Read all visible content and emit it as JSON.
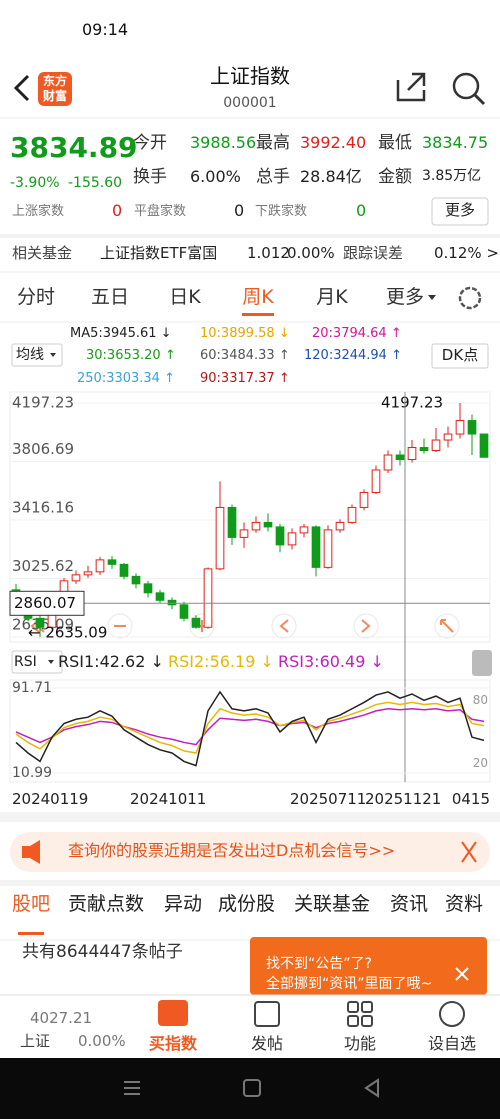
{
  "status": {
    "time": "09:14"
  },
  "header": {
    "logo": [
      "东方",
      "财富"
    ],
    "title": "上证指数",
    "code": "000001"
  },
  "quote": {
    "price": "3834.89",
    "change_pct": "-3.90%",
    "change": "-155.60",
    "fields": [
      {
        "label": "今开",
        "value": "3988.56"
      },
      {
        "label": "最高",
        "value": "3992.40"
      },
      {
        "label": "最低",
        "value": "3834.75"
      },
      {
        "label": "换手",
        "value": "6.00%"
      },
      {
        "label": "总手",
        "value": "28.84亿"
      },
      {
        "label": "金额",
        "value": "3.85万亿"
      }
    ],
    "counts": [
      {
        "label": "上涨家数",
        "value": "0"
      },
      {
        "label": "平盘家数",
        "value": "0"
      },
      {
        "label": "下跌家数",
        "value": "0"
      }
    ],
    "more": "更多"
  },
  "fund": {
    "label": "相关基金",
    "name": "上证指数ETF富国",
    "price": "1.012",
    "pct": "0.00%",
    "error_label": "跟踪误差",
    "error": "0.12% >"
  },
  "tabs": {
    "items": [
      "分时",
      "五日",
      "日K",
      "周K",
      "月K",
      "更多"
    ],
    "active": 3
  },
  "ma": {
    "button": "均线",
    "dk": "DK点",
    "legend": [
      {
        "text": "MA5:3945.61 ↓",
        "color": "#222222"
      },
      {
        "text": "10:3899.58 ↓",
        "color": "#e8a400"
      },
      {
        "text": "20:3794.64 ↑",
        "color": "#d3149a"
      },
      {
        "text": "30:3653.20 ↑",
        "color": "#1a9a1a"
      },
      {
        "text": "60:3484.33 ↑",
        "color": "#555555"
      },
      {
        "text": "120:3244.94 ↑",
        "color": "#1f4fb3"
      },
      {
        "text": "250:3303.34 ↑",
        "color": "#3aa0d8"
      },
      {
        "text": "90:3317.37 ↑",
        "color": "#b01818"
      }
    ]
  },
  "kline": {
    "ylim": [
      2635.09,
      4197.23
    ],
    "yticks": [
      4197.23,
      3806.69,
      3416.16,
      3025.62,
      2635.09
    ],
    "high_label": "4197.23",
    "low_label": "← 2635.09",
    "cursor_price": 2860.07,
    "candles": [
      [
        2950,
        2890,
        2990,
        2870
      ],
      [
        2890,
        2760,
        2900,
        2740
      ],
      [
        2760,
        2700,
        2780,
        2635
      ],
      [
        2700,
        2860,
        2880,
        2690
      ],
      [
        2860,
        3010,
        3030,
        2850
      ],
      [
        3010,
        3050,
        3080,
        2990
      ],
      [
        3050,
        3070,
        3110,
        3030
      ],
      [
        3070,
        3150,
        3170,
        3050
      ],
      [
        3150,
        3120,
        3175,
        3090
      ],
      [
        3120,
        3040,
        3130,
        3020
      ],
      [
        3040,
        2990,
        3060,
        2960
      ],
      [
        2990,
        2930,
        3010,
        2900
      ],
      [
        2930,
        2880,
        2950,
        2860
      ],
      [
        2880,
        2850,
        2900,
        2820
      ],
      [
        2850,
        2760,
        2870,
        2740
      ],
      [
        2760,
        2700,
        2780,
        2690
      ],
      [
        2700,
        3090,
        3100,
        2690
      ],
      [
        3090,
        3500,
        3674,
        3080
      ],
      [
        3500,
        3300,
        3520,
        3250
      ],
      [
        3300,
        3350,
        3400,
        3230
      ],
      [
        3350,
        3400,
        3440,
        3330
      ],
      [
        3400,
        3370,
        3460,
        3340
      ],
      [
        3370,
        3250,
        3390,
        3200
      ],
      [
        3250,
        3330,
        3360,
        3220
      ],
      [
        3330,
        3370,
        3390,
        3300
      ],
      [
        3370,
        3100,
        3380,
        3040
      ],
      [
        3100,
        3350,
        3380,
        3090
      ],
      [
        3350,
        3400,
        3420,
        3330
      ],
      [
        3400,
        3500,
        3520,
        3390
      ],
      [
        3500,
        3600,
        3620,
        3480
      ],
      [
        3600,
        3750,
        3780,
        3590
      ],
      [
        3750,
        3850,
        3880,
        3730
      ],
      [
        3850,
        3820,
        3880,
        3780
      ],
      [
        3820,
        3900,
        3950,
        3800
      ],
      [
        3900,
        3880,
        3960,
        3860
      ],
      [
        3880,
        3950,
        4030,
        3870
      ],
      [
        3950,
        3990,
        4040,
        3900
      ],
      [
        3990,
        4080,
        4197,
        3960
      ],
      [
        4080,
        3990,
        4120,
        3850
      ],
      [
        3990,
        3835,
        3993,
        3835
      ]
    ]
  },
  "rsi": {
    "button": "RSI",
    "legend": [
      {
        "text": "RSI1:42.62 ↓",
        "color": "#222222"
      },
      {
        "text": "RSI2:56.19 ↓",
        "color": "#e8b800"
      },
      {
        "text": "RSI3:60.49 ↓",
        "color": "#c020c0"
      }
    ],
    "ylim": [
      10.99,
      91.71
    ],
    "yticks": [
      91.71,
      10.99
    ],
    "right_ticks": [
      80,
      20
    ],
    "series": [
      [
        40,
        30,
        22,
        45,
        58,
        62,
        64,
        70,
        65,
        52,
        45,
        38,
        33,
        30,
        22,
        18,
        70,
        88,
        72,
        70,
        72,
        68,
        50,
        60,
        64,
        40,
        62,
        66,
        72,
        78,
        85,
        88,
        82,
        86,
        80,
        84,
        78,
        82,
        45,
        42
      ],
      [
        48,
        40,
        34,
        44,
        54,
        58,
        60,
        64,
        62,
        55,
        50,
        45,
        40,
        37,
        32,
        30,
        58,
        72,
        68,
        66,
        67,
        64,
        56,
        59,
        61,
        52,
        60,
        63,
        67,
        71,
        76,
        78,
        76,
        78,
        76,
        77,
        74,
        76,
        58,
        56
      ],
      [
        50,
        45,
        40,
        45,
        52,
        55,
        57,
        60,
        59,
        55,
        52,
        48,
        45,
        43,
        40,
        38,
        52,
        63,
        62,
        61,
        62,
        60,
        56,
        58,
        59,
        54,
        58,
        60,
        63,
        66,
        70,
        72,
        71,
        72,
        71,
        72,
        70,
        71,
        62,
        60
      ]
    ]
  },
  "dates": [
    "20240119",
    "20241011",
    "20250711",
    "20251121",
    "0415"
  ],
  "banner": "查询你的股票近期是否发出过D点机会信号>>",
  "bottom_tabs": {
    "items": [
      "股吧",
      "贡献点数",
      "异动",
      "成份股",
      "关联基金",
      "资讯",
      "资料"
    ],
    "active": 0
  },
  "posts": "共有8644447条帖子",
  "popup": [
    "找不到“公告”了?",
    "全部挪到“资讯”里面了哦~"
  ],
  "nav": {
    "index_price": "4027.21",
    "index_name": "上证",
    "index_pct": "0.00%",
    "items": [
      "买指数",
      "发帖",
      "功能",
      "设自选"
    ]
  }
}
